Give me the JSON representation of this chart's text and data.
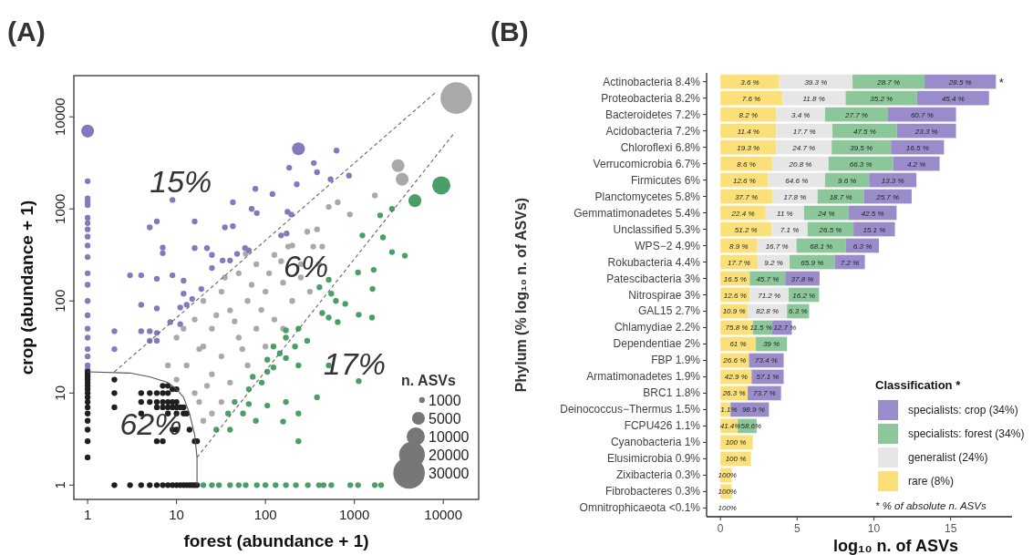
{
  "chart_data": [
    {
      "type": "bubble",
      "title": "(A)",
      "xlabel": "forest (abundance + 1)",
      "ylabel": "crop (abundance + 1)",
      "legend_title": "n. ASVs",
      "marker": "circle",
      "log": "xy",
      "xlim": [
        0.7,
        25000
      ],
      "ylim": [
        0.7,
        28000
      ],
      "xticks": [
        1,
        10,
        100,
        1000,
        10000
      ],
      "yticks": [
        1,
        10,
        100,
        1000,
        10000
      ],
      "size_legend": [
        1000,
        5000,
        10000,
        20000,
        30000
      ],
      "annotations": [
        "15%",
        "6%",
        "17%",
        "62%"
      ],
      "series": [
        {
          "color": "#a9a9a9",
          "x": [
            10,
            13,
            16,
            20,
            20,
            25,
            25,
            32,
            32,
            40,
            40,
            50,
            50,
            63,
            63,
            79,
            79,
            100,
            100,
            126,
            126,
            158,
            158,
            200,
            251,
            316,
            16,
            8,
            32,
            13,
            45,
            70,
            28,
            55,
            90,
            35,
            110,
            200,
            18,
            12,
            22,
            10,
            20,
            25,
            18,
            14000,
            3100,
            3450,
            1700,
            650,
            515,
            890,
            295,
            380,
            180,
            345,
            435,
            60,
            150,
            250,
            400
          ],
          "values": [
            40,
            20,
            63,
            32,
            100,
            16,
            50,
            126,
            25,
            79,
            13,
            40,
            200,
            20,
            100,
            50,
            251,
            32,
            126,
            63,
            316,
            158,
            50,
            100,
            251,
            126,
            10,
            20,
            8,
            6,
            60,
            150,
            70,
            30,
            80,
            180,
            200,
            400,
            30,
            50,
            12,
            14,
            5,
            6,
            8,
            16000,
            2950,
            2100,
            1400,
            1180,
            1050,
            870,
            565,
            600,
            390,
            390,
            390,
            325,
            270,
            180,
            250
          ],
          "sizes": [
            1000,
            1000,
            1000,
            1000,
            1000,
            1000,
            1000,
            1000,
            1000,
            1000,
            1000,
            1000,
            1000,
            1000,
            1000,
            1000,
            1000,
            1000,
            1000,
            1000,
            1000,
            1000,
            1000,
            1000,
            1000,
            1000,
            1000,
            1000,
            1000,
            1000,
            1000,
            1000,
            1000,
            1000,
            1000,
            1000,
            1000,
            1000,
            1000,
            1000,
            1000,
            1000,
            1000,
            1000,
            1000,
            30000,
            5000,
            5000,
            1000,
            1000,
            1000,
            1000,
            1000,
            1000,
            1000,
            1000,
            1000,
            1000,
            1000,
            1000,
            1000
          ]
        },
        {
          "color": "#4a9f68",
          "x": [
            20,
            25,
            30,
            40,
            50,
            60,
            80,
            100,
            130,
            170,
            220,
            300,
            400,
            450,
            550,
            900,
            1100,
            1700,
            2000,
            9500,
            4800,
            2650,
            1950,
            1230,
            2100,
            2650,
            3700,
            1100,
            1650,
            515,
            405,
            550,
            1600,
            620,
            790,
            435,
            515,
            1580,
            650,
            1120,
            170,
            235,
            170,
            295,
            215,
            123,
            145,
            105,
            170,
            123,
            235,
            72,
            91,
            65,
            105,
            45,
            65,
            105,
            170,
            380,
            515,
            1120,
            38,
            56,
            78,
            158,
            235,
            235,
            28,
            40
          ],
          "values": [
            1,
            1,
            1,
            1,
            1,
            1,
            1,
            1,
            1,
            1,
            1,
            1,
            1,
            1,
            1,
            1,
            1,
            1,
            1,
            1800,
            1230,
            1000,
            850,
            515,
            490,
            340,
            310,
            204,
            218,
            170,
            141,
            120,
            135,
            100,
            93,
            74,
            66,
            66,
            59,
            71,
            48,
            50,
            40,
            37,
            32,
            32,
            27,
            23,
            24,
            19,
            20,
            15,
            13,
            11,
            17,
            8,
            7.6,
            7.3,
            8,
            9,
            20,
            13.5,
            6,
            6,
            5,
            4.9,
            6,
            3,
            4,
            4
          ],
          "sizes": [
            1000,
            1000,
            1000,
            1000,
            1000,
            1000,
            1000,
            1000,
            1000,
            1000,
            1000,
            1000,
            1000,
            1000,
            1000,
            1000,
            1000,
            1000,
            1000,
            10000,
            5000,
            1000,
            1000,
            1000,
            1000,
            1000,
            1000,
            1000,
            1000,
            1000,
            1000,
            1000,
            1000,
            1000,
            1000,
            1000,
            1000,
            1000,
            1000,
            1000,
            1000,
            1000,
            1000,
            1000,
            1000,
            1000,
            1000,
            1000,
            1000,
            1000,
            1000,
            1000,
            1000,
            1000,
            1000,
            1000,
            1000,
            1000,
            1000,
            1000,
            1000,
            1000,
            1000,
            1000,
            1000,
            1000,
            1000,
            1000,
            1000,
            1000
          ]
        },
        {
          "color": "#8479bd",
          "x": [
            1,
            1,
            1,
            1,
            1,
            1,
            1,
            1,
            1,
            1,
            1,
            1,
            1,
            1,
            1,
            1,
            1,
            1,
            1,
            1,
            1,
            235,
            630,
            350,
            185,
            380,
            870,
            540,
            225,
            9,
            77,
            120,
            70,
            80,
            43,
            177,
            195,
            16,
            5,
            6,
            35,
            43,
            150,
            173,
            7,
            7,
            16,
            22,
            25,
            33,
            40,
            59,
            65,
            48,
            3,
            4,
            6,
            9,
            12,
            19,
            25,
            12,
            15,
            4,
            6,
            11,
            13,
            2,
            4,
            5,
            6,
            8.5,
            11,
            2,
            5,
            6
          ],
          "values": [
            7000,
            2000,
            1300,
            1200,
            1100,
            800,
            700,
            600,
            500,
            400,
            300,
            200,
            150,
            100,
            70,
            50,
            40,
            30,
            25,
            20,
            18,
            4500,
            4300,
            3150,
            2800,
            2500,
            2300,
            2100,
            1850,
            1250,
            1650,
            1450,
            1000,
            900,
            1180,
            930,
            870,
            730,
            630,
            730,
            630,
            650,
            515,
            540,
            380,
            330,
            375,
            375,
            316,
            275,
            275,
            375,
            355,
            325,
            190,
            190,
            174,
            190,
            166,
            135,
            228,
            120,
            105,
            91,
            83,
            85,
            91,
            47,
            47,
            47,
            45,
            59,
            56,
            30,
            37,
            37
          ],
          "sizes": [
            5000,
            1000,
            1000,
            1000,
            1000,
            1000,
            1000,
            1000,
            1000,
            1000,
            1000,
            1000,
            1000,
            1000,
            1000,
            1000,
            1000,
            1000,
            1000,
            1000,
            1000,
            5000,
            1000,
            1000,
            1000,
            1000,
            1000,
            1000,
            1000,
            1000,
            1000,
            1000,
            1000,
            1000,
            1000,
            1000,
            1000,
            1000,
            1000,
            1000,
            1000,
            1000,
            1000,
            1000,
            1000,
            1000,
            1000,
            1000,
            1000,
            1000,
            1000,
            1000,
            1000,
            1000,
            1000,
            1000,
            1000,
            1000,
            1000,
            1000,
            1000,
            1000,
            1000,
            1000,
            1000,
            1000,
            1000,
            1000,
            1000,
            1000,
            1000,
            1000,
            1000,
            1000,
            1000,
            1000
          ]
        },
        {
          "color": "#1f1f1f",
          "x": [
            1,
            1,
            1,
            1,
            1,
            1,
            1,
            1,
            1,
            1,
            1,
            1,
            1,
            1,
            1,
            1,
            2,
            3,
            4,
            5,
            6,
            7,
            8,
            9,
            10,
            11,
            12,
            13,
            14,
            15,
            16,
            17,
            2,
            2,
            2,
            4,
            5,
            6,
            7,
            8,
            4,
            5,
            6,
            7,
            8,
            9,
            10,
            6,
            7,
            8,
            9,
            10,
            11,
            12,
            4,
            8,
            10,
            12,
            13,
            7,
            8,
            9,
            10,
            9,
            10,
            6,
            7,
            16,
            17,
            14
          ],
          "values": [
            2,
            3,
            4,
            5,
            6,
            7,
            8,
            9,
            10,
            11,
            12,
            13,
            14,
            15,
            16,
            17,
            1,
            1,
            1,
            1,
            1,
            1,
            1,
            1,
            1,
            1,
            1,
            1,
            1,
            1,
            1,
            1,
            10,
            7,
            14,
            10,
            10,
            10,
            10,
            10,
            8,
            8,
            8,
            8,
            8,
            8,
            8,
            7,
            7,
            7,
            7,
            7,
            7,
            7,
            6,
            6,
            6,
            6,
            6,
            12,
            12,
            11,
            11,
            4,
            4,
            3,
            3,
            3,
            3,
            4
          ],
          "sizes": [
            1000,
            1000,
            1000,
            1000,
            1000,
            1000,
            1000,
            1000,
            1000,
            1000,
            1000,
            1000,
            1000,
            1000,
            1000,
            1000,
            1000,
            1000,
            1000,
            1000,
            1000,
            1000,
            1000,
            1000,
            1000,
            1000,
            1000,
            1000,
            1000,
            1000,
            1000,
            1000,
            1000,
            1000,
            1000,
            1000,
            1000,
            1000,
            1000,
            1000,
            1000,
            1000,
            1000,
            1000,
            1000,
            1000,
            1000,
            1000,
            1000,
            1000,
            1000,
            1000,
            1000,
            1000,
            1000,
            1000,
            1000,
            1000,
            1000,
            1000,
            1000,
            1000,
            1000,
            1000,
            1000,
            1000,
            1000,
            1000,
            1000,
            1000
          ]
        },
        {
          "type": "line",
          "marker": "none",
          "color": "#666666",
          "line_style": "dashed",
          "x": [
            2,
            8500
          ],
          "values": [
            17,
            19000
          ]
        },
        {
          "type": "line",
          "marker": "none",
          "color": "#666666",
          "line_style": "dashed",
          "x": [
            17,
            13500
          ],
          "values": [
            2,
            6800
          ]
        },
        {
          "type": "line",
          "marker": "none",
          "color": "#555555",
          "line_style": "solid",
          "x": [
            1,
            3,
            5,
            8,
            10,
            12,
            14,
            16,
            17,
            17
          ],
          "values": [
            17,
            16.5,
            15,
            13,
            11,
            9,
            6,
            3.5,
            2,
            1
          ]
        }
      ]
    },
    {
      "type": "bar",
      "orientation": "horizontal",
      "stacked": true,
      "title": "(B)",
      "xlabel": "log₁₀ n. of ASVs",
      "ylabel": "Phylum (% log₁₀ n. of ASVs)",
      "legend_title": "Classification *",
      "legend": "bottom right",
      "xlim": [
        -0.9,
        19
      ],
      "xticks": [
        0,
        5,
        10,
        15
      ],
      "categories": [
        "Actinobacteria 8.4%",
        "Proteobacteria 8.2%",
        "Bacteroidetes 7.2%",
        "Acidobacteria 7.2%",
        "Chloroflexi 6.8%",
        "Verrucomicrobia 6.7%",
        "Firmicutes 6%",
        "Planctomycetes 5.8%",
        "Gemmatimonadetes 5.4%",
        "Unclassified 5.3%",
        "WPS−2 4.9%",
        "Rokubacteria 4.4%",
        "Patescibacteria 3%",
        "Nitrospirae 3%",
        "GAL15 2.7%",
        "Chlamydiae 2.2%",
        "Dependentiae 2%",
        "FBP 1.9%",
        "Armatimonadetes 1.9%",
        "BRC1 1.8%",
        "Deinococcus−Thermus 1.5%",
        "FCPU426 1.1%",
        "Cyanobacteria 1%",
        "Elusimicrobia 0.9%",
        "Zixibacteria 0.3%",
        "Fibrobacteres 0.3%",
        "Omnitrophicaeota <0.1%"
      ],
      "annotations": [
        "*",
        "* % of absolute n. ASVs",
        "100%",
        {
          "text": "3.6 %",
          "x": 1.92,
          "y": "Actinobacteria 8.4%"
        },
        {
          "text": "39.3 %",
          "x": 6.22,
          "y": "Actinobacteria 8.4%"
        },
        {
          "text": "28.7 %",
          "x": 10.96,
          "y": "Actinobacteria 8.4%"
        },
        {
          "text": "28.5 %",
          "x": 15.63,
          "y": "Actinobacteria 8.4%"
        },
        {
          "text": "7.6 %",
          "x": 2.01,
          "y": "Proteobacteria 8.2%"
        },
        {
          "text": "11.8 %",
          "x": 6.09,
          "y": "Proteobacteria 8.2%"
        },
        {
          "text": "35.2 %",
          "x": 10.49,
          "y": "Proteobacteria 8.2%"
        },
        {
          "text": "45.4 %",
          "x": 15.16,
          "y": "Proteobacteria 8.2%"
        },
        {
          "text": "8.2 %",
          "x": 1.82,
          "y": "Bacteroidetes 7.2%"
        },
        {
          "text": "3.4 %",
          "x": 5.23,
          "y": "Bacteroidetes 7.2%"
        },
        {
          "text": "27.7 %",
          "x": 8.87,
          "y": "Bacteroidetes 7.2%"
        },
        {
          "text": "60.7 %",
          "x": 13.14,
          "y": "Bacteroidetes 7.2%"
        },
        {
          "text": "11.4 %",
          "x": 1.82,
          "y": "Acidobacteria 7.2%"
        },
        {
          "text": "17.7 %",
          "x": 5.47,
          "y": "Acidobacteria 7.2%"
        },
        {
          "text": "47.5 %",
          "x": 9.4,
          "y": "Acidobacteria 7.2%"
        },
        {
          "text": "23.3 %",
          "x": 13.43,
          "y": "Acidobacteria 7.2%"
        },
        {
          "text": "19.3 %",
          "x": 1.82,
          "y": "Chloroflexi 6.8%"
        },
        {
          "text": "24.7 %",
          "x": 5.44,
          "y": "Chloroflexi 6.8%"
        },
        {
          "text": "39.5 %",
          "x": 9.18,
          "y": "Chloroflexi 6.8%"
        },
        {
          "text": "16.5 %",
          "x": 12.84,
          "y": "Chloroflexi 6.8%"
        },
        {
          "text": "8.6 %",
          "x": 1.69,
          "y": "Verrucomicrobia 6.7%"
        },
        {
          "text": "20.8 %",
          "x": 5.22,
          "y": "Verrucomicrobia 6.7%"
        },
        {
          "text": "66.3 %",
          "x": 9.15,
          "y": "Verrucomicrobia 6.7%"
        },
        {
          "text": "4.2 %",
          "x": 12.77,
          "y": "Verrucomicrobia 6.7%"
        },
        {
          "text": "12.6 %",
          "x": 1.56,
          "y": "Firmicutes 6%"
        },
        {
          "text": "64.6 %",
          "x": 4.97,
          "y": "Firmicutes 6%"
        },
        {
          "text": "9.6 %",
          "x": 8.26,
          "y": "Firmicutes 6%"
        },
        {
          "text": "13.3 %",
          "x": 11.23,
          "y": "Firmicutes 6%"
        },
        {
          "text": "37.7 %",
          "x": 1.69,
          "y": "Planctomycetes 5.8%"
        },
        {
          "text": "17.8 %",
          "x": 4.86,
          "y": "Planctomycetes 5.8%"
        },
        {
          "text": "18.7 %",
          "x": 7.84,
          "y": "Planctomycetes 5.8%"
        },
        {
          "text": "25.7 %",
          "x": 10.9,
          "y": "Planctomycetes 5.8%"
        },
        {
          "text": "22.4 %",
          "x": 1.48,
          "y": "Gemmatimonadetes 5.4%"
        },
        {
          "text": "11 %",
          "x": 4.2,
          "y": "Gemmatimonadetes 5.4%"
        },
        {
          "text": "24 %",
          "x": 6.91,
          "y": "Gemmatimonadetes 5.4%"
        },
        {
          "text": "42.5 %",
          "x": 9.92,
          "y": "Gemmatimonadetes 5.4%"
        },
        {
          "text": "51.2 %",
          "x": 1.67,
          "y": "Unclassified 5.3%"
        },
        {
          "text": "7.1 %",
          "x": 4.51,
          "y": "Unclassified 5.3%"
        },
        {
          "text": "26.5 %",
          "x": 7.18,
          "y": "Unclassified 5.3%"
        },
        {
          "text": "15.1 %",
          "x": 10.02,
          "y": "Unclassified 5.3%"
        },
        {
          "text": "8.9 %",
          "x": 1.2,
          "y": "WPS−2 4.9%"
        },
        {
          "text": "16.7 %",
          "x": 3.68,
          "y": "WPS−2 4.9%"
        },
        {
          "text": "68.1 %",
          "x": 6.57,
          "y": "WPS−2 4.9%"
        },
        {
          "text": "6.3 %",
          "x": 9.26,
          "y": "WPS−2 4.9%"
        },
        {
          "text": "17.7 %",
          "x": 1.21,
          "y": "Rokubacteria 4.4%"
        },
        {
          "text": "9.2 %",
          "x": 3.47,
          "y": "Rokubacteria 4.4%"
        },
        {
          "text": "65.9 %",
          "x": 5.98,
          "y": "Rokubacteria 4.4%"
        },
        {
          "text": "7.2 %",
          "x": 8.43,
          "y": "Rokubacteria 4.4%"
        },
        {
          "text": "16.5 %",
          "x": 0.96,
          "y": "Patescibacteria 3%"
        },
        {
          "text": "45.7 %",
          "x": 3.07,
          "y": "Patescibacteria 3%"
        },
        {
          "text": "37.8 %",
          "x": 5.34,
          "y": "Patescibacteria 3%"
        },
        {
          "text": "12.6 %",
          "x": 0.96,
          "y": "Nitrospirae 3%"
        },
        {
          "text": "71.2 %",
          "x": 3.18,
          "y": "Nitrospirae 3%"
        },
        {
          "text": "16.2 %",
          "x": 5.44,
          "y": "Nitrospirae 3%"
        },
        {
          "text": "10.9 %",
          "x": 0.89,
          "y": "GAL15 2.7%"
        },
        {
          "text": "82.8 %",
          "x": 3.06,
          "y": "GAL15 2.7%"
        },
        {
          "text": "6.3 %",
          "x": 5.06,
          "y": "GAL15 2.7%"
        },
        {
          "text": "75.8 %",
          "x": 1.06,
          "y": "Chlamydiae 2.2%"
        },
        {
          "text": "11.5 %",
          "x": 2.65,
          "y": "Chlamydiae 2.2%"
        },
        {
          "text": "12.7 %",
          "x": 4.2,
          "y": "Chlamydiae 2.2%"
        },
        {
          "text": "61 %",
          "x": 1.15,
          "y": "Dependentiae 2%"
        },
        {
          "text": "39 %",
          "x": 3.32,
          "y": "Dependentiae 2%"
        },
        {
          "text": "26.6 %",
          "x": 0.93,
          "y": "FBP 1.9%"
        },
        {
          "text": "73.4 %",
          "x": 2.99,
          "y": "FBP 1.9%"
        },
        {
          "text": "42.9 %",
          "x": 1.02,
          "y": "Armatimonadetes 1.9%"
        },
        {
          "text": "57.1 %",
          "x": 3.08,
          "y": "Armatimonadetes 1.9%"
        },
        {
          "text": "26.3 %",
          "x": 0.89,
          "y": "BRC1 1.8%"
        },
        {
          "text": "73.7 %",
          "x": 2.87,
          "y": "BRC1 1.8%"
        },
        {
          "text": "1.1%",
          "x": 0.55,
          "y": "Deinococcus−Thermus 1.5%"
        },
        {
          "text": "98.9 %",
          "x": 2.15,
          "y": "Deinococcus−Thermus 1.5%"
        },
        {
          "text": "41.4%",
          "x": 0.65,
          "y": "FCPU426 1.1%"
        },
        {
          "text": "58.6%",
          "x": 2.0,
          "y": "FCPU426 1.1%"
        },
        {
          "text": "100 %",
          "x": 1.0,
          "y": "Cyanobacteria 1%"
        },
        {
          "text": "100 %",
          "x": 1.0,
          "y": "Elusimicrobia 0.9%"
        },
        {
          "text": "100%",
          "x": 0.45,
          "y": "Zixibacteria 0.3%"
        },
        {
          "text": "100%",
          "x": 0.45,
          "y": "Fibrobacteres 0.3%"
        }
      ],
      "series": [
        {
          "name": "rare (8%)",
          "color": "#fbe07a",
          "values": [
            3.83,
            4.02,
            3.63,
            3.63,
            3.63,
            3.38,
            3.11,
            3.38,
            2.95,
            3.34,
            2.4,
            2.42,
            1.91,
            1.91,
            1.78,
            2.11,
            2.3,
            1.86,
            2.03,
            1.78,
            0.66,
            1.13,
            2.11,
            1.99,
            0.74,
            0.74,
            0
          ]
        },
        {
          "name": "generalist (24%)",
          "color": "#e6e6e6",
          "values": [
            4.78,
            4.14,
            3.19,
            3.67,
            3.62,
            3.67,
            3.71,
            2.95,
            2.5,
            2.34,
            2.56,
            2.09,
            null,
            2.54,
            2.56,
            null,
            null,
            null,
            null,
            null,
            null,
            null,
            null,
            null,
            null,
            null,
            null
          ]
        },
        {
          "name": "specialists: forest (34%)",
          "color": "#8cc79a",
          "values": [
            4.69,
            4.65,
            4.1,
            4.2,
            3.86,
            4.2,
            2.87,
            3.01,
            2.91,
            2.99,
            3.22,
            2.93,
            2.31,
            1.98,
            1.44,
            1.27,
            2.04,
            null,
            null,
            null,
            null,
            1.23,
            null,
            null,
            null,
            null,
            null
          ]
        },
        {
          "name": "specialists: crop (34%)",
          "color": "#9a8ccb",
          "values": [
            4.65,
            4.69,
            4.43,
            3.85,
            3.46,
            3.03,
            3.08,
            3.12,
            3.12,
            2.7,
            2.15,
            1.97,
            2.24,
            null,
            null,
            1.27,
            null,
            2.26,
            2.09,
            2.17,
            2.5,
            null,
            null,
            null,
            null,
            null,
            null
          ]
        }
      ]
    }
  ]
}
